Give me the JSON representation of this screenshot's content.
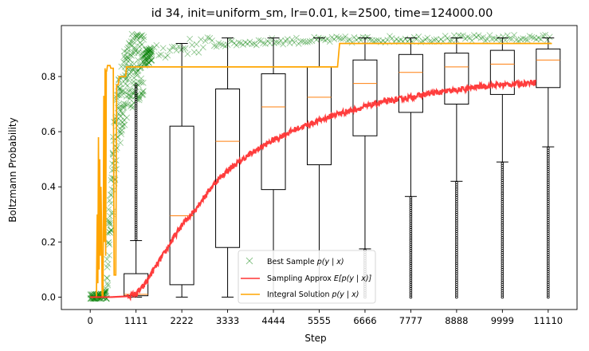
{
  "chart_data": {
    "type": "line",
    "title": "id 34, init=uniform_sm, lr=0.01, k=2500, time=124000.00",
    "xlabel": "Step",
    "ylabel": "Boltzmann Probability",
    "xlim": [
      -700,
      11810
    ],
    "ylim": [
      -0.045,
      0.985
    ],
    "x_ticks": [
      0,
      1111,
      2222,
      3333,
      4444,
      5555,
      6666,
      7777,
      8888,
      9999,
      11110
    ],
    "x_tick_labels": [
      "0",
      "1111",
      "2222",
      "3333",
      "4444",
      "5555",
      "6666",
      "7777",
      "8888",
      "9999",
      "11110"
    ],
    "y_ticks": [
      0.0,
      0.2,
      0.4,
      0.6,
      0.8
    ],
    "y_tick_labels": [
      "0.0",
      "0.2",
      "0.4",
      "0.6",
      "0.8"
    ],
    "grid": false,
    "legend_position": "lower-center",
    "series": [
      {
        "name": "Best Sample $p(y \\mid x)$",
        "label_main": "Best Sample ",
        "label_math": "p(y | x)",
        "marker": "x",
        "color": "#008000",
        "points": [
          [
            0,
            0.0
          ],
          [
            150,
            0.0
          ],
          [
            250,
            0.0
          ],
          [
            350,
            0.01
          ],
          [
            400,
            0.05
          ],
          [
            450,
            0.2
          ],
          [
            500,
            0.35
          ],
          [
            550,
            0.45
          ],
          [
            600,
            0.55
          ],
          [
            650,
            0.62
          ],
          [
            700,
            0.68
          ],
          [
            800,
            0.74
          ],
          [
            900,
            0.79
          ],
          [
            1000,
            0.82
          ],
          [
            1111,
            0.845
          ],
          [
            1300,
            0.865
          ],
          [
            1500,
            0.88
          ],
          [
            1800,
            0.895
          ],
          [
            2200,
            0.905
          ],
          [
            2700,
            0.915
          ],
          [
            3333,
            0.92
          ],
          [
            4000,
            0.925
          ],
          [
            5000,
            0.93
          ],
          [
            6000,
            0.933
          ],
          [
            7000,
            0.935
          ],
          [
            8000,
            0.937
          ],
          [
            9000,
            0.938
          ],
          [
            10000,
            0.939
          ],
          [
            11200,
            0.94
          ]
        ]
      },
      {
        "name": "Sampling Approx $E[p(y \\mid x)]$",
        "label_main": "Sampling Approx ",
        "label_math": "E[p(y | x)]",
        "color": "#ff3333",
        "points": [
          [
            0,
            0.0
          ],
          [
            500,
            0.0
          ],
          [
            900,
            0.003
          ],
          [
            1000,
            0.006
          ],
          [
            1111,
            0.012
          ],
          [
            1300,
            0.04
          ],
          [
            1500,
            0.09
          ],
          [
            1800,
            0.16
          ],
          [
            2000,
            0.21
          ],
          [
            2222,
            0.26
          ],
          [
            2500,
            0.31
          ],
          [
            2800,
            0.37
          ],
          [
            3000,
            0.41
          ],
          [
            3333,
            0.46
          ],
          [
            3700,
            0.5
          ],
          [
            4000,
            0.53
          ],
          [
            4444,
            0.57
          ],
          [
            5000,
            0.61
          ],
          [
            5555,
            0.64
          ],
          [
            6000,
            0.665
          ],
          [
            6666,
            0.69
          ],
          [
            7000,
            0.705
          ],
          [
            7777,
            0.725
          ],
          [
            8300,
            0.74
          ],
          [
            8888,
            0.75
          ],
          [
            9500,
            0.765
          ],
          [
            9999,
            0.77
          ],
          [
            10500,
            0.775
          ],
          [
            10800,
            0.78
          ]
        ]
      },
      {
        "name": "Integral Solution $p(y \\mid x)$",
        "label_main": "Integral Solution ",
        "label_math": "p(y | x)",
        "color": "#ffa500",
        "points": [
          [
            0,
            0.0
          ],
          [
            150,
            0.0
          ],
          [
            170,
            0.3
          ],
          [
            185,
            0.05
          ],
          [
            200,
            0.58
          ],
          [
            215,
            0.1
          ],
          [
            230,
            0.5
          ],
          [
            245,
            0.15
          ],
          [
            260,
            0.4
          ],
          [
            275,
            0.25
          ],
          [
            290,
            0.0
          ],
          [
            310,
            0.0
          ],
          [
            330,
            0.73
          ],
          [
            345,
            0.2
          ],
          [
            360,
            0.83
          ],
          [
            375,
            0.15
          ],
          [
            390,
            0.82
          ],
          [
            400,
            0.82
          ],
          [
            420,
            0.84
          ],
          [
            480,
            0.84
          ],
          [
            500,
            0.83
          ],
          [
            560,
            0.83
          ],
          [
            580,
            0.08
          ],
          [
            620,
            0.08
          ],
          [
            640,
            0.77
          ],
          [
            680,
            0.77
          ],
          [
            700,
            0.8
          ],
          [
            860,
            0.8
          ],
          [
            880,
            0.835
          ],
          [
            6000,
            0.835
          ],
          [
            6050,
            0.92
          ],
          [
            11200,
            0.92
          ]
        ]
      }
    ],
    "boxplots": [
      {
        "x": 1111,
        "whislo": 0.0,
        "q1": 0.005,
        "med": 0.01,
        "q3": 0.085,
        "whishi": 0.205,
        "fliers_range": [
          0.21,
          0.77
        ]
      },
      {
        "x": 2222,
        "whislo": 0.0,
        "q1": 0.045,
        "med": 0.295,
        "q3": 0.62,
        "whishi": 0.92
      },
      {
        "x": 3333,
        "whislo": 0.0,
        "q1": 0.18,
        "med": 0.565,
        "q3": 0.755,
        "whishi": 0.94
      },
      {
        "x": 4444,
        "whislo": 0.0,
        "q1": 0.39,
        "med": 0.69,
        "q3": 0.81,
        "whishi": 0.94
      },
      {
        "x": 5555,
        "whislo": 0.0,
        "q1": 0.48,
        "med": 0.725,
        "q3": 0.835,
        "whishi": 0.94
      },
      {
        "x": 6666,
        "whislo": 0.175,
        "q1": 0.585,
        "med": 0.775,
        "q3": 0.86,
        "whishi": 0.94,
        "fliers_range": [
          0.0,
          0.17
        ]
      },
      {
        "x": 7777,
        "whislo": 0.365,
        "q1": 0.67,
        "med": 0.815,
        "q3": 0.88,
        "whishi": 0.94,
        "fliers_range": [
          0.0,
          0.36
        ]
      },
      {
        "x": 8888,
        "whislo": 0.42,
        "q1": 0.7,
        "med": 0.835,
        "q3": 0.885,
        "whishi": 0.94,
        "fliers_range": [
          0.0,
          0.415
        ]
      },
      {
        "x": 9999,
        "whislo": 0.49,
        "q1": 0.735,
        "med": 0.845,
        "q3": 0.895,
        "whishi": 0.94,
        "fliers_range": [
          0.0,
          0.485
        ]
      },
      {
        "x": 11110,
        "whislo": 0.545,
        "q1": 0.76,
        "med": 0.86,
        "q3": 0.9,
        "whishi": 0.94,
        "fliers_range": [
          0.0,
          0.54
        ]
      }
    ],
    "colors": {
      "box": "#000000",
      "median": "#ff7f0e",
      "best_sample": "#008000",
      "sampling_approx": "#ff3333",
      "integral_solution": "#ffa500"
    }
  }
}
